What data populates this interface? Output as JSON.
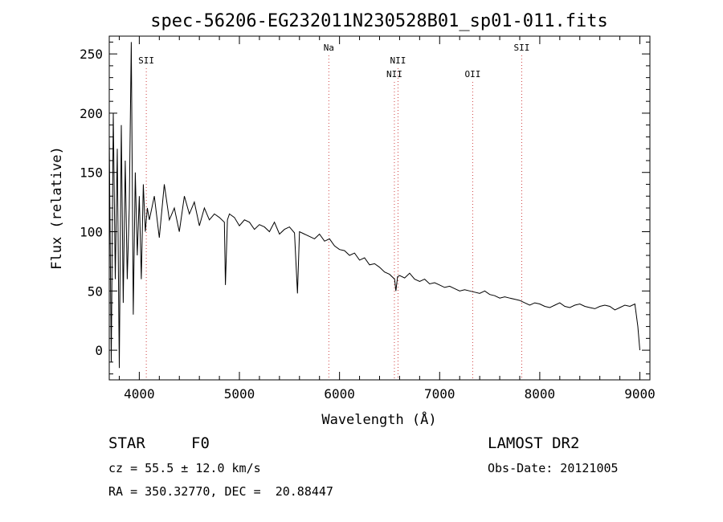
{
  "chart_data": {
    "type": "line",
    "title": "spec-56206-EG232011N230528B01_sp01-011.fits",
    "xlabel": "Wavelength (Å)",
    "ylabel": "Flux (relative)",
    "xlim": [
      3700,
      9100
    ],
    "ylim": [
      -25,
      265
    ],
    "xticks": [
      4000,
      5000,
      6000,
      7000,
      8000,
      9000
    ],
    "yticks": [
      0,
      50,
      100,
      150,
      200,
      250
    ],
    "grid": false,
    "series": [
      {
        "x": [
          3700,
          3720,
          3740,
          3760,
          3780,
          3800,
          3820,
          3840,
          3860,
          3880,
          3900,
          3920,
          3940,
          3960,
          3980,
          4000,
          4020,
          4040,
          4060,
          4080,
          4100,
          4150,
          4200,
          4250,
          4300,
          4350,
          4400,
          4450,
          4500,
          4550,
          4600,
          4650,
          4700,
          4750,
          4800,
          4850,
          4860,
          4880,
          4900,
          4950,
          5000,
          5050,
          5100,
          5150,
          5200,
          5250,
          5300,
          5350,
          5400,
          5450,
          5500,
          5550,
          5580,
          5600,
          5650,
          5700,
          5750,
          5800,
          5850,
          5900,
          5950,
          6000,
          6050,
          6100,
          6150,
          6200,
          6250,
          6300,
          6350,
          6400,
          6450,
          6500,
          6550,
          6563,
          6580,
          6600,
          6650,
          6700,
          6750,
          6800,
          6850,
          6900,
          6950,
          7000,
          7050,
          7100,
          7150,
          7200,
          7250,
          7300,
          7350,
          7400,
          7450,
          7500,
          7550,
          7600,
          7650,
          7700,
          7750,
          7800,
          7850,
          7900,
          7950,
          8000,
          8050,
          8100,
          8150,
          8200,
          8250,
          8300,
          8350,
          8400,
          8450,
          8500,
          8550,
          8600,
          8650,
          8700,
          8750,
          8800,
          8850,
          8900,
          8950,
          8980,
          9000
        ],
        "y": [
          180,
          -10,
          200,
          60,
          170,
          -15,
          190,
          40,
          160,
          60,
          120,
          260,
          30,
          150,
          80,
          130,
          60,
          140,
          100,
          120,
          110,
          130,
          95,
          140,
          110,
          120,
          100,
          130,
          115,
          125,
          105,
          120,
          110,
          115,
          112,
          108,
          55,
          110,
          115,
          112,
          105,
          110,
          108,
          102,
          106,
          104,
          100,
          108,
          98,
          102,
          104,
          99,
          48,
          100,
          98,
          96,
          94,
          98,
          92,
          94,
          88,
          85,
          84,
          80,
          82,
          76,
          78,
          72,
          73,
          70,
          66,
          64,
          60,
          50,
          62,
          63,
          61,
          65,
          60,
          58,
          60,
          56,
          57,
          55,
          53,
          54,
          52,
          50,
          51,
          50,
          49,
          48,
          50,
          47,
          46,
          44,
          45,
          44,
          43,
          42,
          40,
          38,
          40,
          39,
          37,
          36,
          38,
          40,
          37,
          36,
          38,
          39,
          37,
          36,
          35,
          37,
          38,
          37,
          34,
          36,
          38,
          37,
          39,
          20,
          0
        ]
      }
    ],
    "line_labels": [
      {
        "label": "SII",
        "x": 4070,
        "row": 1
      },
      {
        "label": "Na",
        "x": 5893,
        "row": 0
      },
      {
        "label": "NII",
        "x": 6548,
        "row": 2
      },
      {
        "label": "NII",
        "x": 6584,
        "row": 1
      },
      {
        "label": "OII",
        "x": 7330,
        "row": 2
      },
      {
        "label": "SII",
        "x": 7820,
        "row": 0
      }
    ]
  },
  "info": {
    "object_class": "STAR",
    "subclass": "F0",
    "survey": "LAMOST DR2",
    "redshift": "cz = 55.5 ± 12.0 km/s",
    "obs_date": "Obs-Date: 20121005",
    "coords": "RA = 350.32770, DEC =  20.88447"
  }
}
